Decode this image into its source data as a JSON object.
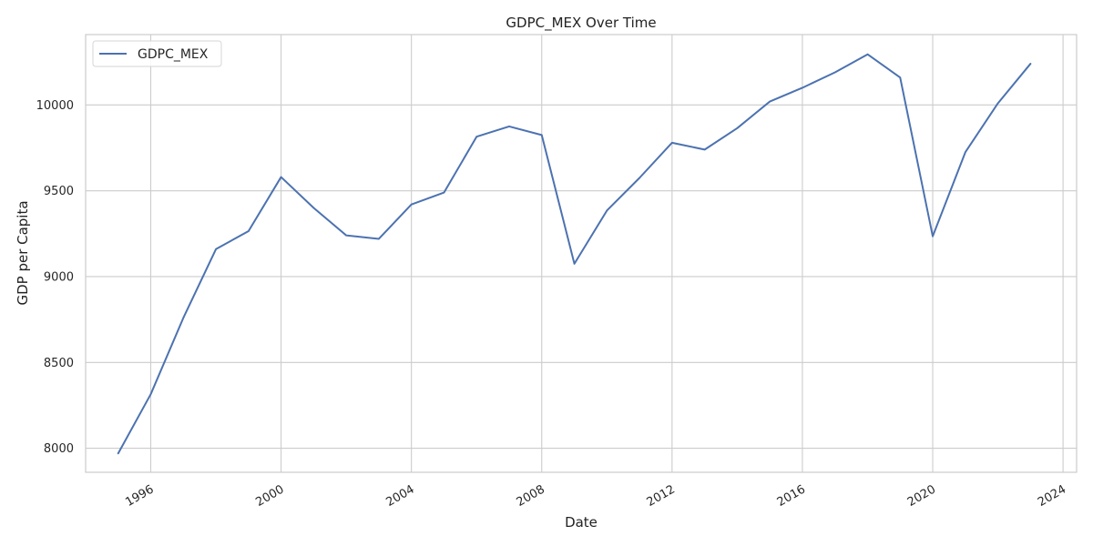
{
  "chart_data": {
    "type": "line",
    "title": "GDPC_MEX Over Time",
    "xlabel": "Date",
    "ylabel": "GDP per Capita",
    "grid": true,
    "legend": "top-left",
    "xlim": [
      "1994-01-01",
      "2024-06-01"
    ],
    "ylim": [
      7860,
      10410
    ],
    "x_ticks": [
      "1996",
      "2000",
      "2004",
      "2008",
      "2012",
      "2016",
      "2020",
      "2024"
    ],
    "y_ticks": [
      8000,
      8500,
      9000,
      9500,
      10000
    ],
    "series": [
      {
        "name": "GDPC_MEX",
        "color": "#4c72b0",
        "x": [
          "1995-01-01",
          "1996-01-01",
          "1997-01-01",
          "1998-01-01",
          "1999-01-01",
          "2000-01-01",
          "2001-01-01",
          "2002-01-01",
          "2003-01-01",
          "2004-01-01",
          "2005-01-01",
          "2006-01-01",
          "2007-01-01",
          "2008-01-01",
          "2009-01-01",
          "2010-01-01",
          "2011-01-01",
          "2012-01-01",
          "2013-01-01",
          "2014-01-01",
          "2015-01-01",
          "2016-01-01",
          "2017-01-01",
          "2018-01-01",
          "2019-01-01",
          "2020-01-01",
          "2021-01-01",
          "2022-01-01",
          "2023-01-01"
        ],
        "values": [
          7970,
          8315,
          8760,
          9160,
          9265,
          9580,
          9400,
          9240,
          9220,
          9420,
          9490,
          9815,
          9875,
          9825,
          9075,
          9385,
          9575,
          9780,
          9740,
          9865,
          10020,
          10100,
          10190,
          10295,
          10160,
          9235,
          9725,
          10010,
          10240
        ]
      }
    ]
  }
}
